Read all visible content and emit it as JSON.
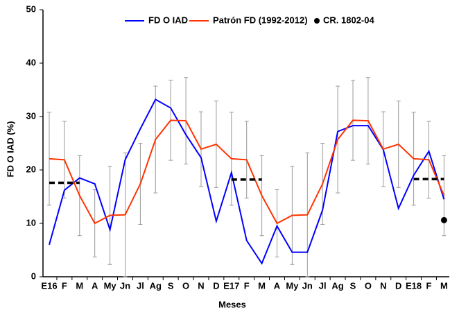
{
  "chart_data": {
    "type": "line",
    "xlabel": "Meses",
    "ylabel": "FD O IAD (%)",
    "categories": [
      "E16",
      "F",
      "M",
      "A",
      "My",
      "Jn",
      "Jl",
      "Ag",
      "S",
      "O",
      "N",
      "D",
      "E17",
      "F",
      "M",
      "A",
      "My",
      "Jn",
      "Jl",
      "Ag",
      "S",
      "O",
      "N",
      "D",
      "E18",
      "F",
      "M"
    ],
    "ylim": [
      0,
      50
    ],
    "yticks": [
      0,
      10,
      20,
      30,
      40,
      50
    ],
    "series": [
      {
        "name": "FD O IAD",
        "color": "#0000ff",
        "values": [
          6,
          16.2,
          18.5,
          17.4,
          8.8,
          21.9,
          27.7,
          33.2,
          31.6,
          26.6,
          22.3,
          10.4,
          19.5,
          6.8,
          2.5,
          9.5,
          4.6,
          4.6,
          12.5,
          27.2,
          28.3,
          28.3,
          23.8,
          12.8,
          19,
          23.5,
          14.5
        ]
      },
      {
        "name": "Patrón FD (1992-2012)",
        "color": "#ff3300",
        "values": [
          22.1,
          21.9,
          15.2,
          10,
          11.5,
          11.6,
          17.4,
          25.7,
          29.3,
          29.2,
          23.9,
          24.8,
          22.1,
          21.9,
          15.2,
          10,
          11.5,
          11.6,
          17.4,
          25.7,
          29.3,
          29.2,
          23.9,
          24.8,
          22.1,
          21.9,
          15.2
        ],
        "errors": [
          8.7,
          7.2,
          7.5,
          6.3,
          9.2,
          11.6,
          7.6,
          10,
          7.5,
          8.1,
          7,
          8.1,
          8.7,
          7.2,
          7.5,
          6.3,
          9.2,
          11.6,
          7.6,
          10,
          7.5,
          8.1,
          7,
          8.1,
          8.7,
          7.2,
          7.5
        ],
        "error_color": "#999999"
      },
      {
        "color": "#000000",
        "style": "dashed",
        "values": [
          17.6,
          17.6,
          17.6,
          null,
          null,
          null,
          null,
          null,
          null,
          null,
          null,
          null,
          18.2,
          18.2,
          18.2,
          null,
          null,
          null,
          null,
          null,
          null,
          null,
          null,
          null,
          18.3,
          18.3,
          18.3
        ]
      },
      {
        "name": "CR. 1802-04",
        "color": "#000000",
        "style": "dot",
        "values": [
          null,
          null,
          null,
          null,
          null,
          null,
          null,
          null,
          null,
          null,
          null,
          null,
          null,
          null,
          null,
          null,
          null,
          null,
          null,
          null,
          null,
          null,
          null,
          null,
          null,
          null,
          10.6
        ]
      }
    ]
  }
}
